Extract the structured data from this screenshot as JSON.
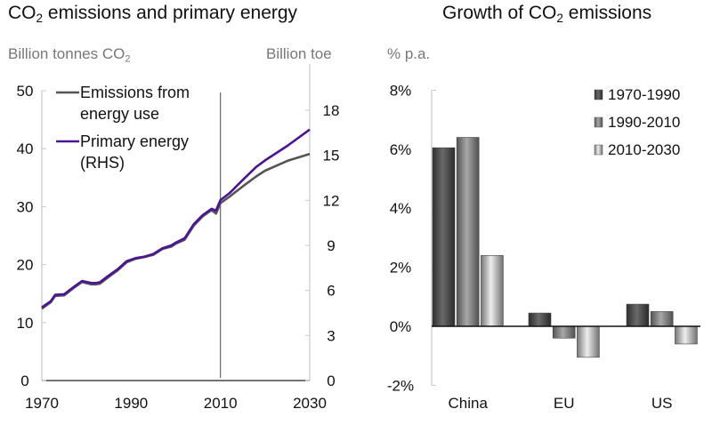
{
  "chart_data": [
    {
      "type": "line",
      "title": "CO2 emissions and primary energy",
      "title_parts": {
        "pre": "CO",
        "sub": "2",
        "post": " emissions and primary energy"
      },
      "ylabel": "Billion tonnes CO2",
      "ylabel_parts": {
        "pre": "Billion tonnes CO",
        "sub": "2"
      },
      "y2label": "Billion toe",
      "xlim": [
        1970,
        2030
      ],
      "ylim": [
        0,
        50
      ],
      "y2lim": [
        0,
        19.3
      ],
      "x_ticks": [
        "1970",
        "1990",
        "2010",
        "2030"
      ],
      "y_ticks": [
        "0",
        "10",
        "20",
        "30",
        "40",
        "50"
      ],
      "y2_ticks": [
        "0",
        "3",
        "6",
        "9",
        "12",
        "15",
        "18"
      ],
      "divider_year": 2010,
      "legend_position": "top-left",
      "series": [
        {
          "name": "Emissions from energy use",
          "legend_lines": [
            "Emissions from",
            "energy use"
          ],
          "axis": "left",
          "color": "#555555",
          "x": [
            1970,
            1972,
            1973,
            1975,
            1977,
            1979,
            1981,
            1982,
            1983,
            1985,
            1987,
            1989,
            1991,
            1993,
            1995,
            1997,
            1999,
            2000,
            2002,
            2004,
            2006,
            2008,
            2009,
            2010,
            2012,
            2015,
            2018,
            2020,
            2025,
            2030
          ],
          "y": [
            12.4,
            13.5,
            14.6,
            14.7,
            15.9,
            17.0,
            16.6,
            16.6,
            16.7,
            17.9,
            19.0,
            20.4,
            21.0,
            21.3,
            21.7,
            22.7,
            23.1,
            23.6,
            24.3,
            26.7,
            28.3,
            29.4,
            28.8,
            30.6,
            31.7,
            33.5,
            35.2,
            36.2,
            37.9,
            39.1
          ]
        },
        {
          "name": "Primary energy (RHS)",
          "legend_lines": [
            "Primary energy",
            "(RHS)"
          ],
          "axis": "right",
          "color": "#4b1490",
          "x": [
            1970,
            1972,
            1973,
            1975,
            1977,
            1979,
            1981,
            1982,
            1983,
            1985,
            1987,
            1989,
            1991,
            1993,
            1995,
            1997,
            1999,
            2000,
            2002,
            2004,
            2006,
            2008,
            2009,
            2010,
            2012,
            2015,
            2018,
            2020,
            2025,
            2030
          ],
          "y": [
            4.87,
            5.28,
            5.71,
            5.75,
            6.2,
            6.63,
            6.5,
            6.49,
            6.55,
            7.0,
            7.42,
            7.95,
            8.15,
            8.25,
            8.43,
            8.81,
            9.0,
            9.18,
            9.48,
            10.4,
            11.01,
            11.43,
            11.32,
            12.02,
            12.47,
            13.36,
            14.22,
            14.66,
            15.63,
            16.71
          ]
        }
      ]
    },
    {
      "type": "bar",
      "title": "Growth of CO2 emissions",
      "title_parts": {
        "pre": "Growth of CO",
        "sub": "2",
        "post": " emissions"
      },
      "ylabel": "% p.a.",
      "categories": [
        "China",
        "EU",
        "US"
      ],
      "ylim": [
        -2,
        8
      ],
      "y_ticks": [
        "8%",
        "6%",
        "4%",
        "2%",
        "0%",
        "-2%"
      ],
      "legend_position": "top-right",
      "series": [
        {
          "name": "1970-1990",
          "values": [
            6.05,
            0.45,
            0.75
          ],
          "color": "#4a4a4a"
        },
        {
          "name": "1990-2010",
          "values": [
            6.4,
            -0.4,
            0.5
          ],
          "color": "#888888"
        },
        {
          "name": "2010-2030",
          "values": [
            2.4,
            -1.05,
            -0.6
          ],
          "color": "#c8c8c8"
        }
      ]
    }
  ]
}
